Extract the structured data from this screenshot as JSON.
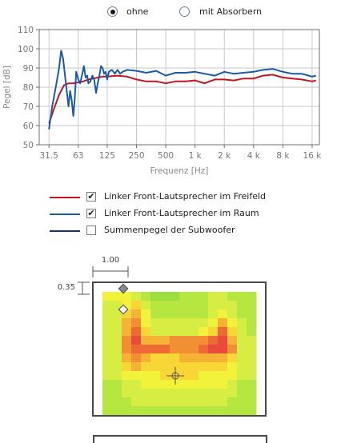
{
  "mode": {
    "options": [
      {
        "label": "ohne",
        "selected": true
      },
      {
        "label": "mit Absorbern",
        "selected": false
      }
    ]
  },
  "chart_data": {
    "type": "line",
    "xlabel": "Frequenz [Hz]",
    "ylabel": "Pegel [dB]",
    "xscale": "log",
    "xlim": [
      25,
      19000
    ],
    "ylim": [
      50,
      110
    ],
    "yticks": [
      50,
      60,
      70,
      80,
      90,
      100,
      110
    ],
    "xticks": [
      31.5,
      63,
      125,
      250,
      500,
      1000,
      2000,
      4000,
      8000,
      16000
    ],
    "xtick_labels": [
      "31.5",
      "63",
      "125",
      "250",
      "500",
      "1 k",
      "2 k",
      "4 k",
      "8 k",
      "16 k"
    ],
    "grid": true,
    "legend": "below",
    "series": [
      {
        "name": "Linker Front-Lautsprecher im Freifeld",
        "color": "#c8141e",
        "visible": true,
        "x": [
          31.5,
          35,
          40,
          45,
          50,
          56,
          63,
          71,
          80,
          90,
          100,
          112,
          125,
          160,
          200,
          250,
          315,
          400,
          500,
          630,
          800,
          1000,
          1250,
          1600,
          2000,
          2500,
          3150,
          4000,
          5000,
          6300,
          8000,
          10000,
          12500,
          16000,
          17500
        ],
        "values": [
          61,
          68,
          76,
          81,
          82,
          82,
          82.5,
          83,
          84,
          84.5,
          85,
          85.5,
          85.5,
          86,
          85.5,
          84,
          83,
          83,
          82,
          83,
          83,
          83.5,
          82,
          84,
          84,
          83.5,
          84.5,
          84.5,
          86,
          86.5,
          85,
          84.5,
          84,
          83,
          83.5
        ]
      },
      {
        "name": "Linker Front-Lautsprecher im Raum",
        "color": "#1a5aa6",
        "visible": true,
        "x": [
          31.5,
          34,
          37,
          40,
          42,
          44,
          46,
          48,
          50,
          52,
          54,
          56,
          58,
          60,
          63,
          66,
          70,
          72,
          75,
          78,
          80,
          84,
          88,
          92,
          96,
          100,
          104,
          108,
          112,
          116,
          120,
          125,
          130,
          140,
          150,
          160,
          170,
          180,
          200,
          250,
          315,
          400,
          500,
          630,
          800,
          1000,
          1250,
          1600,
          2000,
          2500,
          3150,
          4000,
          5000,
          6300,
          8000,
          10000,
          12500,
          16000,
          17500
        ],
        "values": [
          58,
          70,
          80,
          90,
          99,
          95,
          86,
          78,
          70,
          78,
          73,
          65,
          74,
          88,
          84,
          82,
          88,
          91,
          85,
          86,
          82,
          83,
          86,
          84,
          77,
          82,
          86,
          91,
          90,
          87,
          88,
          84,
          88,
          89,
          87,
          89,
          87,
          88,
          89,
          88.5,
          87.5,
          88.5,
          86,
          87.5,
          87.5,
          88,
          87,
          86,
          88,
          87,
          87.5,
          88,
          89,
          89.5,
          88,
          87,
          87,
          85.5,
          86
        ]
      },
      {
        "name": "Summenpegel der Subwoofer",
        "color": "#1a3462",
        "visible": false,
        "x": [],
        "values": []
      }
    ]
  },
  "room": {
    "width_label": "1.00",
    "height_label": "0.35",
    "heatmap": [
      [
        5,
        5,
        5,
        4,
        3,
        2,
        2,
        2,
        3,
        3,
        3,
        4,
        4,
        3,
        3,
        3
      ],
      [
        4,
        4,
        5,
        6,
        4,
        3,
        3,
        3,
        3,
        3,
        3,
        4,
        4,
        4,
        3,
        3
      ],
      [
        4,
        4,
        6,
        7,
        5,
        3,
        3,
        3,
        3,
        3,
        3,
        4,
        5,
        4,
        3,
        3
      ],
      [
        4,
        4,
        7,
        8,
        5,
        4,
        4,
        4,
        4,
        4,
        4,
        5,
        7,
        5,
        4,
        3
      ],
      [
        4,
        4,
        7,
        9,
        6,
        4,
        4,
        4,
        4,
        4,
        5,
        6,
        9,
        6,
        4,
        3
      ],
      [
        4,
        4,
        8,
        10,
        7,
        7,
        7,
        8,
        8,
        8,
        8,
        9,
        10,
        7,
        4,
        4
      ],
      [
        4,
        4,
        8,
        9,
        9,
        9,
        9,
        8,
        8,
        8,
        9,
        10,
        10,
        8,
        4,
        4
      ],
      [
        4,
        4,
        7,
        8,
        7,
        6,
        6,
        6,
        7,
        7,
        7,
        7,
        7,
        6,
        4,
        4
      ],
      [
        4,
        4,
        6,
        7,
        6,
        6,
        6,
        6,
        6,
        6,
        6,
        6,
        6,
        5,
        4,
        4
      ],
      [
        4,
        4,
        5,
        5,
        5,
        5,
        6,
        6,
        6,
        6,
        5,
        5,
        5,
        5,
        4,
        4
      ],
      [
        3,
        3,
        4,
        4,
        5,
        5,
        5,
        5,
        5,
        5,
        5,
        5,
        5,
        4,
        3,
        3
      ],
      [
        3,
        3,
        4,
        4,
        4,
        4,
        4,
        4,
        4,
        4,
        4,
        4,
        4,
        4,
        3,
        3
      ],
      [
        3,
        3,
        3,
        4,
        4,
        4,
        4,
        4,
        4,
        4,
        4,
        4,
        4,
        3,
        3,
        3
      ],
      [
        3,
        3,
        3,
        3,
        3,
        3,
        3,
        3,
        3,
        3,
        3,
        3,
        3,
        3,
        3,
        3
      ]
    ]
  }
}
